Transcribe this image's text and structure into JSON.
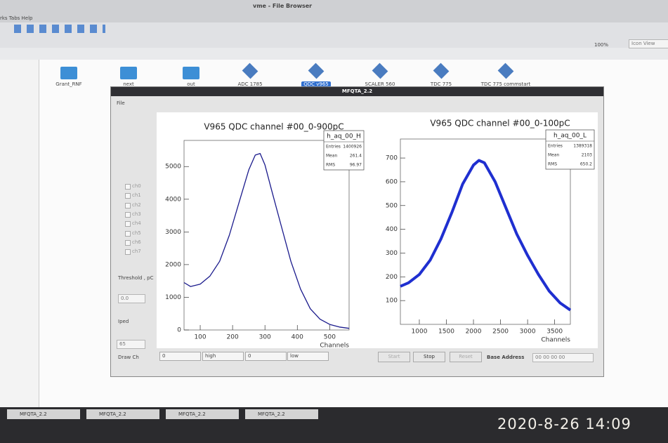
{
  "file_browser": {
    "title": "vme - File Browser",
    "menu": "rks Tabs Help",
    "zoom": "100%",
    "view": "Icon View",
    "icons": [
      "Grant_RNF",
      "next",
      "out",
      "ADC 1785",
      "QDC v965",
      "SCALER 560",
      "TDC 775",
      "TDC 775 commstart"
    ]
  },
  "dialog": {
    "title": "MFQTA_2.2",
    "menu": "File",
    "channels": [
      "ch0",
      "ch1",
      "ch2",
      "ch3",
      "ch4",
      "ch5",
      "ch6",
      "ch7"
    ],
    "threshold_label": "Threshold , pC",
    "threshold": "0.0",
    "iped_label": "Iped",
    "iped": "65",
    "draw_label": "Draw Ch",
    "selects": [
      "0",
      "high",
      "0",
      "low"
    ],
    "buttons": [
      "Start",
      "Stop",
      "Reset"
    ],
    "address_label": "Base Address",
    "address": "00 00 00 00"
  },
  "chart_data": [
    {
      "type": "line",
      "title": "V965 QDC channel #00_0-900pC",
      "xlabel": "Channels",
      "color": "#1a1a8c",
      "x": [
        50,
        70,
        100,
        130,
        160,
        190,
        220,
        250,
        270,
        285,
        300,
        320,
        350,
        380,
        410,
        440,
        470,
        500,
        530,
        560
      ],
      "values": [
        1450,
        1330,
        1400,
        1650,
        2100,
        2900,
        3900,
        4900,
        5350,
        5400,
        5050,
        4300,
        3200,
        2100,
        1250,
        650,
        330,
        170,
        90,
        50
      ],
      "xlim": [
        50,
        560
      ],
      "ylim": [
        0,
        5800
      ],
      "xticks": [
        100,
        200,
        300,
        400,
        500
      ],
      "yticks": [
        0,
        1000,
        2000,
        3000,
        4000,
        5000
      ],
      "stats": {
        "name": "h_aq_00_H",
        "rows": [
          {
            "label": "Entries",
            "value": 1400926
          },
          {
            "label": "Mean",
            "value": 261.4
          },
          {
            "label": "RMS",
            "value": 96.97
          }
        ]
      }
    },
    {
      "type": "line",
      "title": "V965 QDC channel #00_0-100pC",
      "xlabel": "Channels",
      "color": "#1f2fd0",
      "x": [
        650,
        800,
        1000,
        1200,
        1400,
        1600,
        1800,
        2000,
        2100,
        2200,
        2400,
        2600,
        2800,
        3000,
        3200,
        3400,
        3600,
        3790
      ],
      "values": [
        160,
        175,
        210,
        270,
        360,
        470,
        590,
        670,
        690,
        680,
        600,
        490,
        380,
        290,
        210,
        140,
        90,
        60
      ],
      "xlim": [
        650,
        3790
      ],
      "ylim": [
        0,
        780
      ],
      "xticks": [
        1000,
        1500,
        2000,
        2500,
        3000,
        3500
      ],
      "yticks": [
        100,
        200,
        300,
        400,
        500,
        600,
        700
      ],
      "stats": {
        "name": "h_aq_00_L",
        "rows": [
          {
            "label": "Entries",
            "value": 1389318
          },
          {
            "label": "Mean",
            "value": 2103
          },
          {
            "label": "RMS",
            "value": 650.2
          }
        ]
      }
    }
  ],
  "taskbar": [
    "MFQTA_2.2",
    "MFQTA_2.2",
    "MFQTA_2.2",
    "MFQTA_2.2"
  ],
  "timestamp": "2020-8-26 14:09"
}
